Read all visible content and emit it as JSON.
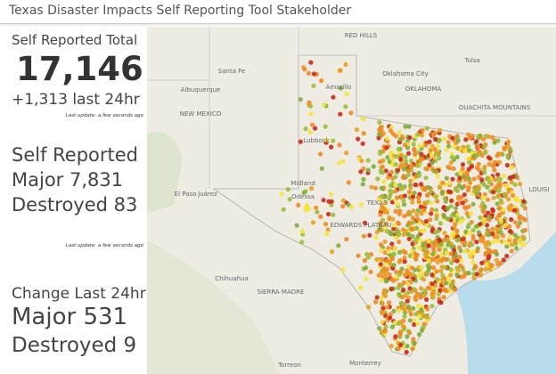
{
  "header": {
    "title": "Texas Disaster Impacts Self Reporting Tool Stakeholder"
  },
  "panels": [
    {
      "title": "Self Reported Total",
      "value": "17,146",
      "change": "+1,313 last 24hr",
      "update": "Last update: a few seconds ago"
    },
    {
      "lines": [
        "Self Reported",
        "Major 7,831",
        "Destroyed 83"
      ],
      "update": "Last update: a few seconds ago"
    },
    {
      "lines": [
        "Change Last 24hr",
        "Major 531",
        "Destroyed 9"
      ]
    }
  ],
  "map": {
    "labels": [
      "RED HILLS",
      "Tulsa",
      "Oklahoma City",
      "OKLAHOMA",
      "Santa Fe",
      "Albuquerque",
      "NEW MEXICO",
      "Amarillo",
      "OUACHITA MOUNTAINS",
      "Lubbock",
      "Midland",
      "Odessa",
      "El Paso",
      "Juárez",
      "TEXAS",
      "EDWARDS PLATEAU",
      "Chihuahua",
      "SIERRA MADRE",
      "Torreon",
      "Monterrey",
      "LOUISI"
    ]
  }
}
